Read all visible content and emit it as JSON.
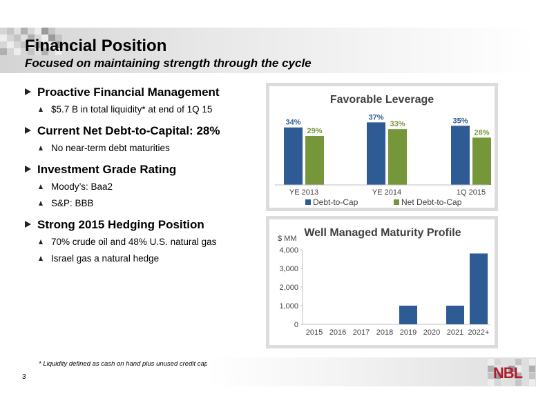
{
  "header": {
    "title": "Financial Position",
    "subtitle": "Focused on maintaining strength through the cycle"
  },
  "bullets": [
    {
      "label": "Proactive Financial Management",
      "subs": [
        "$5.7 B in total liquidity* at end of 1Q 15"
      ]
    },
    {
      "label": "Current Net Debt-to-Capital: 28%",
      "subs": [
        "No near-term debt maturities"
      ]
    },
    {
      "label": "Investment Grade Rating",
      "subs": [
        "Moody’s: Baa2",
        "S&P: BBB"
      ]
    },
    {
      "label": "Strong 2015 Hedging Position",
      "subs": [
        "70% crude oil and 48% U.S. natural gas",
        "Israel gas a natural hedge"
      ]
    }
  ],
  "footnote": "* Liquidity defined as cash on hand plus unused credit capacity",
  "page_number": "3",
  "logo_text": "NBL",
  "colors": {
    "debt": "#2f5b94",
    "net_debt": "#76963a",
    "brand_red": "#b01c2e",
    "frame": "#dcdcdc"
  },
  "chart_data": [
    {
      "type": "bar",
      "title": "Favorable Leverage",
      "categories": [
        "YE 2013",
        "YE 2014",
        "1Q 2015"
      ],
      "series": [
        {
          "name": "Debt-to-Cap",
          "values": [
            34,
            37,
            35
          ],
          "labels": [
            "34%",
            "37%",
            "35%"
          ]
        },
        {
          "name": "Net Debt-to-Cap",
          "values": [
            29,
            33,
            28
          ],
          "labels": [
            "29%",
            "33%",
            "28%"
          ]
        }
      ],
      "legend": "bottom",
      "grid": false
    },
    {
      "type": "bar",
      "title": "Well Managed Maturity Profile",
      "ylabel": "$ MM",
      "categories": [
        "2015",
        "2016",
        "2017",
        "2018",
        "2019",
        "2020",
        "2021",
        "2022+"
      ],
      "values": [
        0,
        0,
        0,
        0,
        1000,
        0,
        1000,
        3800
      ],
      "yticks": [
        "0",
        "1,000",
        "2,000",
        "3,000",
        "4,000"
      ],
      "ylim": [
        0,
        4000
      ],
      "grid": false
    }
  ]
}
